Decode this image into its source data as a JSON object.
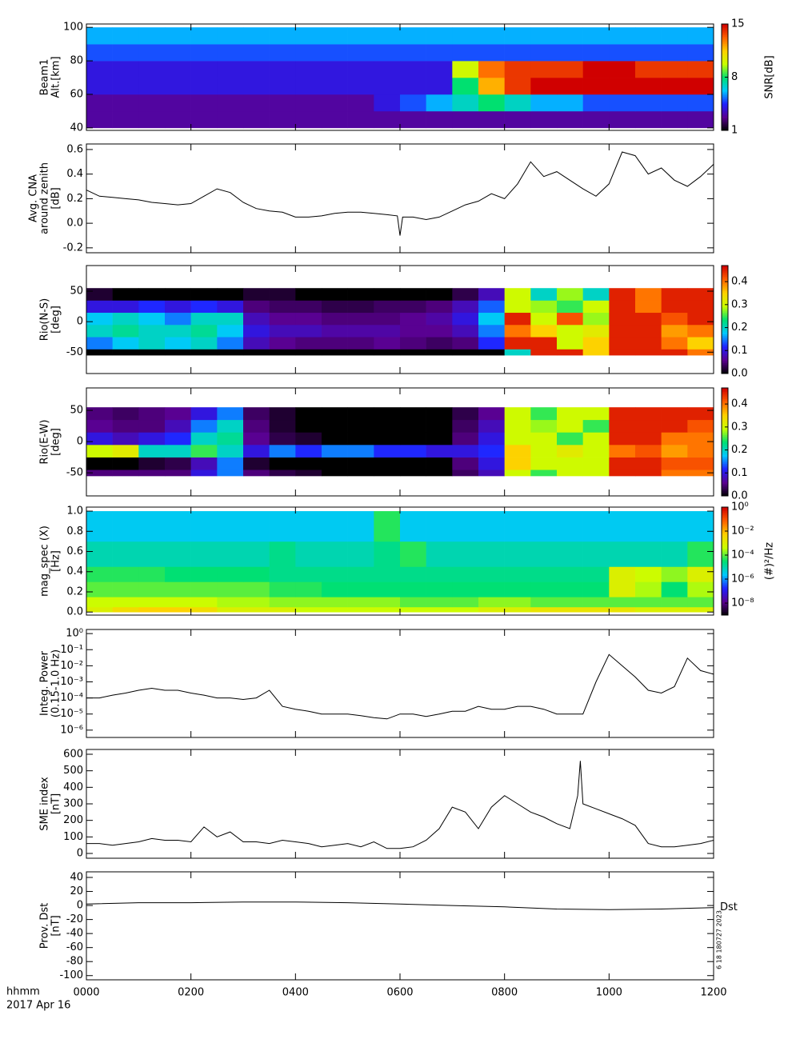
{
  "shared_x": {
    "xlim": [
      0,
      12
    ],
    "xticks": [
      {
        "value": 0,
        "label": "0000"
      },
      {
        "value": 2,
        "label": "0200"
      },
      {
        "value": 4,
        "label": "0400"
      },
      {
        "value": 6,
        "label": "0600"
      },
      {
        "value": 8,
        "label": "0800"
      },
      {
        "value": 10,
        "label": "1000"
      },
      {
        "value": 12,
        "label": "1200"
      }
    ],
    "bin_edges": [
      0,
      0.5,
      1,
      1.5,
      2,
      2.5,
      3,
      3.5,
      4,
      4.5,
      5,
      5.5,
      6,
      6.5,
      7,
      7.5,
      8,
      8.5,
      9,
      9.5,
      10,
      10.5,
      11,
      11.5,
      12
    ],
    "axis_label": "hhmm",
    "date": "2017 Apr 16"
  },
  "colormap": [
    "#000000",
    "#5a0090",
    "#2020ff",
    "#00c8ff",
    "#00e070",
    "#c8ff00",
    "#ffd000",
    "#ff6000",
    "#d00000"
  ],
  "chart_data": [
    {
      "type": "heatmap",
      "ylabel": [
        "Beam1",
        "Alt.[km]"
      ],
      "ylim": [
        38.5,
        102
      ],
      "yticks": [
        40,
        60,
        80,
        100
      ],
      "y_edges": [
        40,
        50,
        60,
        70,
        80,
        90,
        100
      ],
      "z": [
        [
          3,
          3,
          3,
          3,
          3,
          3,
          3,
          3,
          3,
          3,
          3,
          3,
          3,
          3,
          3,
          3,
          3,
          3,
          3,
          3,
          3,
          3,
          3,
          3
        ],
        [
          3,
          3,
          3,
          3,
          3,
          3,
          3,
          3,
          3,
          3,
          3,
          4,
          5,
          6,
          7,
          8,
          7,
          6,
          6,
          5,
          5,
          5,
          5,
          5
        ],
        [
          4,
          4,
          4,
          4,
          4,
          4,
          4,
          4,
          4,
          4,
          4,
          4,
          4,
          4,
          8,
          12,
          14,
          15,
          15,
          15,
          15,
          15,
          15,
          15
        ],
        [
          4,
          4,
          4,
          4,
          4,
          4,
          4,
          4,
          4,
          4,
          4,
          4,
          4,
          4,
          10,
          13,
          14,
          14,
          14,
          15,
          15,
          14,
          14,
          14
        ],
        [
          5,
          5,
          5,
          5,
          5,
          5,
          5,
          5,
          5,
          5,
          5,
          5,
          5,
          5,
          5,
          5,
          5,
          5,
          5,
          5,
          5,
          5,
          5,
          5
        ],
        [
          6,
          6,
          6,
          6,
          6,
          6,
          6,
          6,
          6,
          6,
          6,
          6,
          6,
          6,
          6,
          6,
          6,
          6,
          6,
          6,
          6,
          6,
          6,
          6
        ]
      ],
      "zlim": [
        1,
        15
      ],
      "zticks": [
        1,
        8,
        15
      ],
      "zlabel": "SNR[dB]"
    },
    {
      "type": "line",
      "ylabel": [
        "Avg. CNA",
        "around zenith",
        "[dB]"
      ],
      "ylim": [
        -0.24,
        0.645
      ],
      "yticks": [
        -0.2,
        {
          "value": 0,
          "label": "0.0"
        },
        0.2,
        0.4,
        0.6
      ],
      "x": [
        0,
        0.25,
        0.5,
        0.75,
        1,
        1.25,
        1.5,
        1.75,
        2,
        2.25,
        2.5,
        2.75,
        3,
        3.25,
        3.5,
        3.75,
        4,
        4.25,
        4.5,
        4.75,
        5,
        5.25,
        5.5,
        5.75,
        5.95,
        6,
        6.05,
        6.25,
        6.5,
        6.75,
        7,
        7.25,
        7.5,
        7.75,
        8,
        8.25,
        8.5,
        8.75,
        9,
        9.25,
        9.5,
        9.75,
        10,
        10.25,
        10.5,
        10.75,
        11,
        11.25,
        11.5,
        11.75,
        12
      ],
      "values": [
        0.27,
        0.22,
        0.21,
        0.2,
        0.19,
        0.17,
        0.16,
        0.15,
        0.16,
        0.22,
        0.28,
        0.25,
        0.17,
        0.12,
        0.1,
        0.09,
        0.05,
        0.05,
        0.06,
        0.08,
        0.09,
        0.09,
        0.08,
        0.07,
        0.06,
        -0.1,
        0.05,
        0.05,
        0.03,
        0.05,
        0.1,
        0.15,
        0.18,
        0.24,
        0.2,
        0.32,
        0.5,
        0.38,
        0.42,
        0.35,
        0.28,
        0.22,
        0.32,
        0.58,
        0.55,
        0.4,
        0.45,
        0.35,
        0.3,
        0.38,
        0.48
      ]
    },
    {
      "type": "heatmap",
      "ylabel": [
        "Rio(N-S)",
        "[deg]"
      ],
      "ylim": [
        -85,
        92
      ],
      "yticks": [
        -50,
        0,
        50
      ],
      "y_edges": [
        -55,
        -45,
        -25,
        -5,
        15,
        35,
        55
      ],
      "z": [
        [
          0,
          0,
          0,
          0,
          0,
          0,
          0,
          0,
          0,
          0,
          0,
          0,
          0,
          0,
          0,
          0,
          0.2,
          0.45,
          0.45,
          0.35,
          0.45,
          0.45,
          0.45,
          0.4
        ],
        [
          0.15,
          0.18,
          0.2,
          0.18,
          0.2,
          0.15,
          0.08,
          0.06,
          0.05,
          0.05,
          0.05,
          0.06,
          0.05,
          0.04,
          0.05,
          0.12,
          0.45,
          0.45,
          0.3,
          0.35,
          0.45,
          0.45,
          0.4,
          0.35
        ],
        [
          0.2,
          0.22,
          0.2,
          0.2,
          0.22,
          0.18,
          0.1,
          0.08,
          0.08,
          0.07,
          0.07,
          0.07,
          0.06,
          0.06,
          0.08,
          0.15,
          0.4,
          0.35,
          0.3,
          0.32,
          0.45,
          0.45,
          0.38,
          0.4
        ],
        [
          0.18,
          0.2,
          0.18,
          0.15,
          0.2,
          0.2,
          0.08,
          0.06,
          0.06,
          0.05,
          0.05,
          0.05,
          0.06,
          0.07,
          0.1,
          0.18,
          0.45,
          0.3,
          0.42,
          0.28,
          0.45,
          0.45,
          0.42,
          0.45
        ],
        [
          0.1,
          0.1,
          0.12,
          0.1,
          0.12,
          0.1,
          0.05,
          0.04,
          0.04,
          0.03,
          0.03,
          0.04,
          0.04,
          0.05,
          0.08,
          0.14,
          0.3,
          0.28,
          0.25,
          0.3,
          0.45,
          0.4,
          0.45,
          0.45
        ],
        [
          0.02,
          0,
          0,
          0,
          0,
          0,
          0.02,
          0.02,
          0,
          0,
          0,
          0,
          0,
          0,
          0.03,
          0.08,
          0.3,
          0.2,
          0.28,
          0.2,
          0.45,
          0.4,
          0.45,
          0.45
        ]
      ],
      "zlim": [
        0,
        0.47
      ],
      "zticks": [
        {
          "value": 0,
          "label": "0.0"
        },
        0.1,
        0.2,
        0.3,
        0.4
      ]
    },
    {
      "type": "heatmap",
      "ylabel": [
        "Rio(E-W)",
        "[deg]"
      ],
      "ylim": [
        -87,
        86
      ],
      "yticks": [
        -50,
        0,
        50
      ],
      "y_edges": [
        -55,
        -45,
        -25,
        -5,
        15,
        35,
        55
      ],
      "z": [
        [
          0.05,
          0.05,
          0.05,
          0.05,
          0.1,
          0.15,
          0.05,
          0.03,
          0.02,
          0,
          0,
          0,
          0,
          0,
          0.04,
          0.08,
          0.3,
          0.25,
          0.3,
          0.3,
          0.45,
          0.45,
          0.4,
          0.4
        ],
        [
          0,
          0,
          0.02,
          0.03,
          0.08,
          0.15,
          0.02,
          0,
          0,
          0,
          0,
          0,
          0,
          0,
          0.05,
          0.1,
          0.35,
          0.3,
          0.3,
          0.3,
          0.45,
          0.45,
          0.42,
          0.42
        ],
        [
          0.3,
          0.32,
          0.2,
          0.2,
          0.25,
          0.2,
          0.1,
          0.15,
          0.12,
          0.15,
          0.15,
          0.12,
          0.12,
          0.1,
          0.1,
          0.12,
          0.35,
          0.3,
          0.32,
          0.3,
          0.4,
          0.42,
          0.38,
          0.4
        ],
        [
          0.1,
          0.08,
          0.1,
          0.12,
          0.2,
          0.22,
          0.06,
          0.03,
          0.02,
          0,
          0,
          0,
          0,
          0,
          0.05,
          0.1,
          0.3,
          0.3,
          0.25,
          0.3,
          0.45,
          0.45,
          0.4,
          0.4
        ],
        [
          0.06,
          0.05,
          0.05,
          0.08,
          0.15,
          0.2,
          0.05,
          0.02,
          0,
          0,
          0,
          0,
          0,
          0,
          0.04,
          0.08,
          0.3,
          0.28,
          0.3,
          0.25,
          0.45,
          0.45,
          0.45,
          0.42
        ],
        [
          0.05,
          0.04,
          0.05,
          0.06,
          0.1,
          0.15,
          0.04,
          0.02,
          0,
          0,
          0,
          0,
          0,
          0,
          0.03,
          0.06,
          0.3,
          0.25,
          0.3,
          0.3,
          0.45,
          0.45,
          0.45,
          0.45
        ]
      ],
      "zlim": [
        0,
        0.47
      ],
      "zticks": [
        {
          "value": 0,
          "label": "0.0"
        },
        0.1,
        0.2,
        0.3,
        0.4
      ]
    },
    {
      "type": "heatmap",
      "ylabel": [
        "mag_spec (X)",
        "[Hz]"
      ],
      "ylim": [
        -0.03,
        1.04
      ],
      "yticks": [
        {
          "value": 0,
          "label": "0.0"
        },
        0.2,
        0.4,
        0.6,
        0.8,
        {
          "value": 1,
          "label": "1.0"
        }
      ],
      "y_edges": [
        0,
        0.05,
        0.15,
        0.3,
        0.45,
        0.7,
        1.0
      ],
      "z": [
        [
          0.001,
          0.003,
          0.005,
          0.005,
          0.003,
          0.001,
          0.001,
          0.001,
          0.0005,
          0.0005,
          0.0005,
          0.0005,
          0.0005,
          0.0005,
          0.0005,
          0.001,
          0.001,
          0.002,
          0.002,
          0.002,
          0.002,
          0.001,
          0.001,
          0.001
        ],
        [
          0.0005,
          0.0005,
          0.0005,
          0.0005,
          0.0005,
          0.0003,
          0.0003,
          0.0002,
          0.0002,
          0.0002,
          0.0002,
          0.0002,
          0.0001,
          0.0001,
          0.0001,
          0.0002,
          0.0002,
          0.0001,
          0.0001,
          0.0001,
          0.0001,
          0.0001,
          0.0001,
          0.0001
        ],
        [
          0.0001,
          0.0001,
          0.0001,
          0.0001,
          0.0001,
          0.0001,
          0.0001,
          5e-05,
          5e-05,
          3e-05,
          3e-05,
          3e-05,
          3e-05,
          3e-05,
          3e-05,
          3e-05,
          3e-05,
          3e-05,
          3e-05,
          3e-05,
          0.001,
          0.0003,
          3e-05,
          0.0003
        ],
        [
          5e-05,
          5e-05,
          5e-05,
          3e-05,
          3e-05,
          3e-05,
          3e-05,
          2e-05,
          2e-05,
          2e-05,
          2e-05,
          2e-05,
          2e-05,
          2e-05,
          2e-05,
          2e-05,
          2e-05,
          2e-05,
          2e-05,
          2e-05,
          0.001,
          0.0005,
          0.0002,
          0.001
        ],
        [
          1e-05,
          1e-05,
          1e-05,
          1e-05,
          1e-05,
          1e-05,
          1e-05,
          2e-05,
          1e-05,
          1e-05,
          1e-05,
          2e-05,
          5e-05,
          1e-05,
          1e-05,
          1e-05,
          1e-05,
          1e-05,
          1e-05,
          1e-05,
          1e-05,
          1e-05,
          1e-05,
          5e-05
        ],
        [
          3e-06,
          3e-06,
          3e-06,
          3e-06,
          3e-06,
          3e-06,
          3e-06,
          3e-06,
          3e-06,
          3e-06,
          3e-06,
          5e-05,
          3e-06,
          3e-06,
          3e-06,
          3e-06,
          3e-06,
          3e-06,
          3e-06,
          3e-06,
          3e-06,
          3e-06,
          3e-06,
          3e-06
        ]
      ],
      "zlog": true,
      "zlim": [
        1e-09,
        1
      ],
      "zticks": [
        {
          "value": 1e-08,
          "label": "10⁻⁸"
        },
        {
          "value": 1e-06,
          "label": "10⁻⁶"
        },
        {
          "value": 0.0001,
          "label": "10⁻⁴"
        },
        {
          "value": 0.01,
          "label": "10⁻²"
        },
        {
          "value": 1,
          "label": "10⁰"
        }
      ],
      "zlabel": "(#)²/Hz"
    },
    {
      "type": "line",
      "ylabel": [
        "Integ. Power",
        "(0.15-1.0 Hz)"
      ],
      "ylog": true,
      "ylim": [
        3.5e-07,
        1.8
      ],
      "yticks": [
        {
          "value": 1e-06,
          "label": "10⁻⁶"
        },
        {
          "value": 1e-05,
          "label": "10⁻⁵"
        },
        {
          "value": 0.0001,
          "label": "10⁻⁴"
        },
        {
          "value": 0.001,
          "label": "10⁻³"
        },
        {
          "value": 0.01,
          "label": "10⁻²"
        },
        {
          "value": 0.1,
          "label": "10⁻¹"
        },
        {
          "value": 1,
          "label": "10⁰"
        }
      ],
      "x": [
        0,
        0.25,
        0.5,
        0.75,
        1,
        1.25,
        1.5,
        1.75,
        2,
        2.25,
        2.5,
        2.75,
        3,
        3.25,
        3.5,
        3.75,
        4,
        4.25,
        4.5,
        4.75,
        5,
        5.25,
        5.5,
        5.75,
        6,
        6.25,
        6.5,
        6.75,
        7,
        7.25,
        7.5,
        7.75,
        8,
        8.25,
        8.5,
        8.75,
        9,
        9.25,
        9.5,
        9.75,
        10,
        10.25,
        10.5,
        10.75,
        11,
        11.25,
        11.5,
        11.75,
        12
      ],
      "values": [
        0.0001,
        0.0001,
        0.00015,
        0.0002,
        0.0003,
        0.0004,
        0.0003,
        0.0003,
        0.0002,
        0.00015,
        0.0001,
        0.0001,
        8e-05,
        0.0001,
        0.0003,
        3e-05,
        2e-05,
        1.5e-05,
        1e-05,
        1e-05,
        1e-05,
        8e-06,
        6e-06,
        5e-06,
        1e-05,
        1e-05,
        7e-06,
        1e-05,
        1.5e-05,
        1.5e-05,
        3e-05,
        2e-05,
        2e-05,
        3e-05,
        3e-05,
        2e-05,
        1e-05,
        1e-05,
        1e-05,
        0.001,
        0.05,
        0.01,
        0.002,
        0.0003,
        0.0002,
        0.0005,
        0.03,
        0.005,
        0.003
      ]
    },
    {
      "type": "line",
      "ylabel": [
        "SME index",
        "[nT]"
      ],
      "ylim": [
        -29,
        629
      ],
      "yticks": [
        0,
        100,
        200,
        300,
        400,
        500,
        600
      ],
      "x": [
        0,
        0.25,
        0.5,
        0.75,
        1,
        1.25,
        1.5,
        1.75,
        2,
        2.25,
        2.5,
        2.75,
        3,
        3.25,
        3.5,
        3.75,
        4,
        4.25,
        4.5,
        4.75,
        5,
        5.25,
        5.5,
        5.75,
        6,
        6.25,
        6.5,
        6.75,
        7,
        7.25,
        7.5,
        7.75,
        8,
        8.25,
        8.5,
        8.75,
        9,
        9.25,
        9.4,
        9.45,
        9.5,
        9.75,
        10,
        10.25,
        10.5,
        10.75,
        11,
        11.25,
        11.5,
        11.75,
        12
      ],
      "values": [
        60,
        60,
        50,
        60,
        70,
        90,
        80,
        80,
        70,
        160,
        100,
        130,
        70,
        70,
        60,
        80,
        70,
        60,
        40,
        50,
        60,
        40,
        70,
        30,
        30,
        40,
        80,
        150,
        280,
        250,
        150,
        280,
        350,
        300,
        250,
        220,
        180,
        150,
        350,
        560,
        300,
        270,
        240,
        210,
        170,
        60,
        40,
        40,
        50,
        60,
        80
      ]
    },
    {
      "type": "line",
      "ylabel": [
        "Prov. Dst",
        "[nT]"
      ],
      "ylim": [
        -106,
        48
      ],
      "yticks": [
        -100,
        -80,
        -60,
        -40,
        -20,
        0,
        20,
        40
      ],
      "x": [
        0,
        1,
        2,
        3,
        4,
        5,
        6,
        7,
        8,
        9,
        10,
        11,
        12
      ],
      "values": [
        2,
        4,
        4,
        5,
        5,
        4,
        2,
        0,
        -2,
        -5,
        -6,
        -5,
        -3
      ],
      "annotation": "Dst",
      "stamp": "6 18 180727 2023"
    }
  ]
}
